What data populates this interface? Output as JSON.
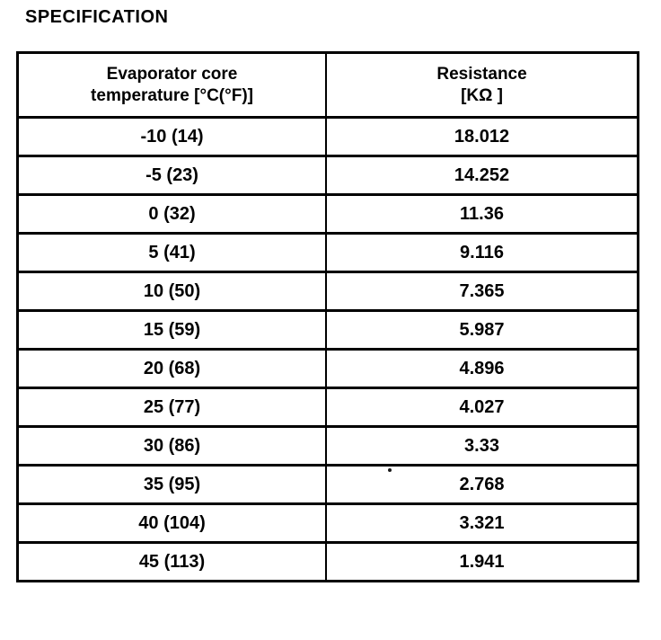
{
  "title": "SPECIFICATION",
  "table": {
    "header": {
      "temp_line1": "Evaporator core",
      "temp_line2": "temperature [°C(°F)]",
      "res_line1": "Resistance",
      "res_line2": "[KΩ ]"
    },
    "rows": [
      {
        "temp": "-10 (14)",
        "resistance": "18.012"
      },
      {
        "temp": "-5 (23)",
        "resistance": "14.252"
      },
      {
        "temp": "0 (32)",
        "resistance": "11.36"
      },
      {
        "temp": "5 (41)",
        "resistance": "9.116"
      },
      {
        "temp": "10 (50)",
        "resistance": "7.365"
      },
      {
        "temp": "15 (59)",
        "resistance": "5.987"
      },
      {
        "temp": "20 (68)",
        "resistance": "4.896"
      },
      {
        "temp": "25 (77)",
        "resistance": "4.027"
      },
      {
        "temp": "30 (86)",
        "resistance": "3.33"
      },
      {
        "temp": "35 (95)",
        "resistance": "2.768"
      },
      {
        "temp": "40 (104)",
        "resistance": "3.321"
      },
      {
        "temp": "45 (113)",
        "resistance": "1.941"
      }
    ]
  }
}
